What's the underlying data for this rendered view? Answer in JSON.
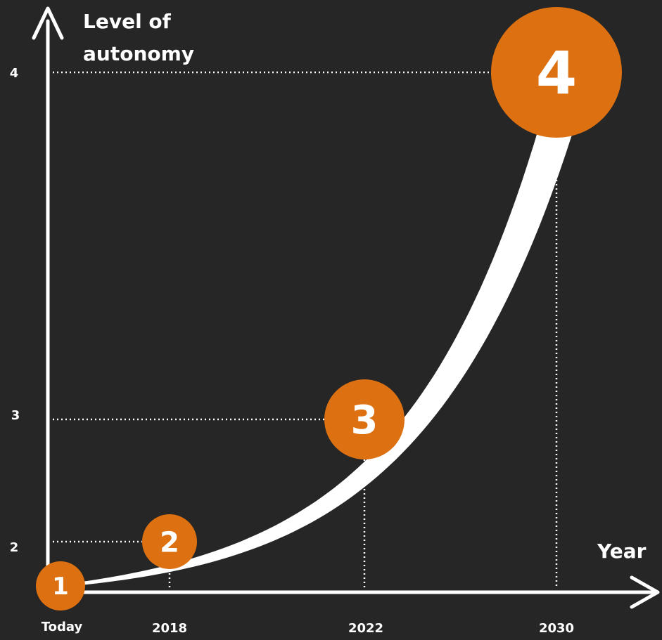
{
  "chart_data": {
    "type": "line",
    "ylabel": [
      "Level of",
      "autonomy"
    ],
    "xlabel": "Year",
    "x": [
      "Today",
      "2018",
      "2022",
      "2030"
    ],
    "y": [
      1,
      2,
      3,
      4
    ],
    "y_ticks": [
      "2",
      "3",
      "4"
    ],
    "points": [
      {
        "x": "Today",
        "y": 1,
        "label": "1"
      },
      {
        "x": "2018",
        "y": 2,
        "label": "2"
      },
      {
        "x": "2022",
        "y": 3,
        "label": "3"
      },
      {
        "x": "2030",
        "y": 4,
        "label": "4"
      }
    ],
    "grid": false,
    "colors": {
      "background": "#262626",
      "axis": "#ffffff",
      "curve": "#ffffff",
      "marker": "#dd7112",
      "guide": "#ffffff"
    }
  }
}
